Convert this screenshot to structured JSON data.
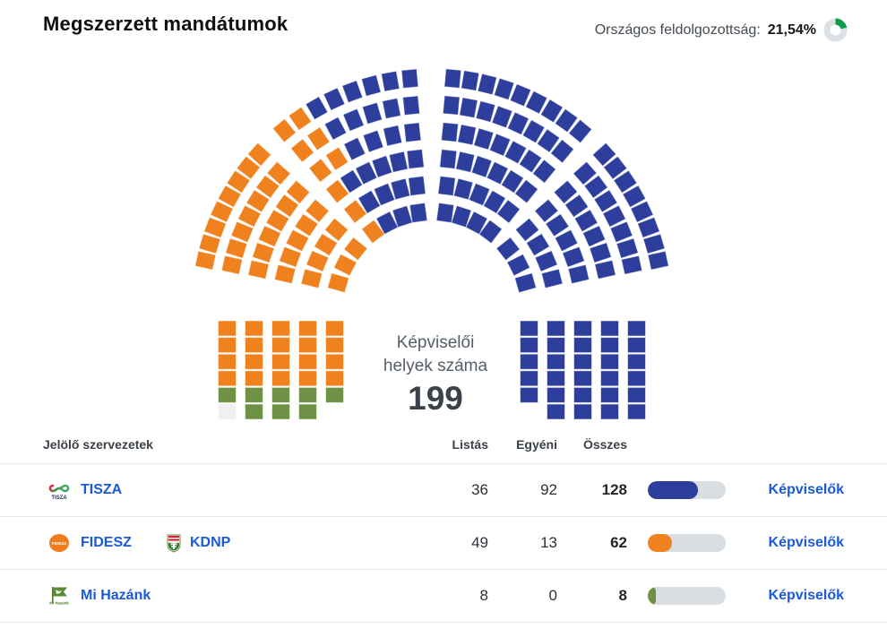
{
  "header": {
    "title": "Megszerzett mandátumok",
    "processing_label": "Országos feldolgozottság:",
    "processing_value": "21,54%",
    "processing_percent": 21.54,
    "processing_color": "#0f9b4c"
  },
  "chart_data": {
    "type": "parliament",
    "total_seats": 199,
    "center_label": [
      "Képviselői",
      "helyek száma"
    ],
    "series": [
      {
        "name": "TISZA",
        "seats": 128,
        "color": "#2d3e9c"
      },
      {
        "name": "FIDESZ-KDNP",
        "seats": 62,
        "color": "#ef811f"
      },
      {
        "name": "Mi Hazánk",
        "seats": 8,
        "color": "#6e9145"
      }
    ],
    "unassigned": {
      "seats": 1,
      "color": "#f0f0f1"
    }
  },
  "table": {
    "headers": {
      "org": "Jelölő szervezetek",
      "list": "Listás",
      "individual": "Egyéni",
      "total": "Összes"
    },
    "link_label": "Képviselők",
    "rows": [
      {
        "parties": [
          {
            "name": "TISZA"
          }
        ],
        "list": 36,
        "individual": 92,
        "total": 128,
        "color": "#2d3e9c"
      },
      {
        "parties": [
          {
            "name": "FIDESZ"
          },
          {
            "name": "KDNP"
          }
        ],
        "list": 49,
        "individual": 13,
        "total": 62,
        "color": "#ef811f"
      },
      {
        "parties": [
          {
            "name": "Mi Hazánk"
          }
        ],
        "list": 8,
        "individual": 0,
        "total": 8,
        "color": "#6e9145"
      }
    ]
  }
}
